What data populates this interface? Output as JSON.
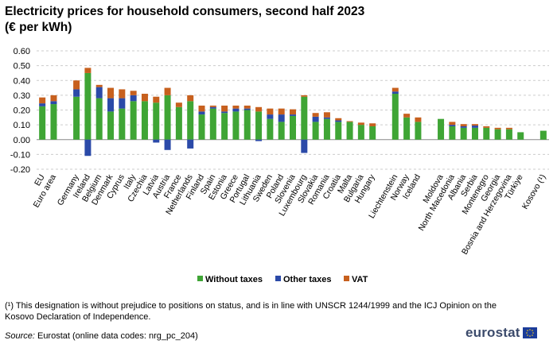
{
  "title": {
    "line1": "Electricity prices for household consumers, second half 2023",
    "line2": "(€ per kWh)"
  },
  "colors": {
    "without_taxes": "#3fa535",
    "other_taxes": "#2b4aa8",
    "vat": "#c7601e",
    "grid": "#cccccc"
  },
  "chart_data": {
    "type": "bar",
    "stacked": true,
    "ylim": [
      -0.2,
      0.6
    ],
    "yticks": [
      "0.60",
      "0.50",
      "0.40",
      "0.30",
      "0.20",
      "0.10",
      "0.00",
      "-0.10",
      "-0.20"
    ],
    "ytick_values": [
      0.6,
      0.5,
      0.4,
      0.3,
      0.2,
      0.1,
      0.0,
      -0.1,
      -0.2
    ],
    "grid": "horizontal dashed",
    "legend_position": "bottom",
    "categories": [
      "EU",
      "Euro area",
      "",
      "Germany",
      "Ireland",
      "Belgium",
      "Denmark",
      "Cyprus",
      "Italy",
      "Czechia",
      "Latvia",
      "Austria",
      "France",
      "Netherlands",
      "Finland",
      "Spain",
      "Estonia",
      "Greece",
      "Portugal",
      "Lithuania",
      "Sweden",
      "Poland",
      "Slovenia",
      "Luxembourg",
      "Slovakia",
      "Romania",
      "Croatia",
      "Malta",
      "Bulgaria",
      "Hungary",
      "",
      "Liechtenstein",
      "Norway",
      "Iceland",
      "",
      "Moldova",
      "North Macedonia",
      "Albania",
      "Serbia",
      "Montenegro",
      "Georgia",
      "Bosnia and Herzegovina",
      "Türkiye",
      "",
      "Kosovo (¹)"
    ],
    "series": [
      {
        "name": "Without taxes",
        "values": [
          0.225,
          0.24,
          null,
          0.29,
          0.45,
          0.28,
          0.19,
          0.21,
          0.26,
          0.26,
          0.25,
          0.3,
          0.22,
          0.26,
          0.17,
          0.21,
          0.18,
          0.19,
          0.2,
          0.19,
          0.14,
          0.12,
          0.16,
          0.29,
          0.12,
          0.14,
          0.12,
          0.12,
          0.1,
          0.09,
          null,
          0.31,
          0.15,
          0.12,
          null,
          0.14,
          0.09,
          0.08,
          0.08,
          0.08,
          0.07,
          0.07,
          0.05,
          null,
          0.06
        ]
      },
      {
        "name": "Other taxes",
        "values": [
          0.02,
          0.02,
          null,
          0.05,
          -0.11,
          0.075,
          0.09,
          0.07,
          0.04,
          0.0,
          -0.02,
          -0.07,
          0.0,
          -0.06,
          0.02,
          0.01,
          0.01,
          0.02,
          0.01,
          -0.01,
          0.03,
          0.05,
          0.01,
          -0.09,
          0.035,
          0.01,
          0.01,
          0.0,
          0.0,
          0.0,
          null,
          0.015,
          0.0,
          0.0,
          null,
          0.0,
          0.01,
          0.01,
          0.015,
          0.0,
          0.0,
          0.0,
          0.0,
          null,
          0.0
        ]
      },
      {
        "name": "VAT",
        "values": [
          0.04,
          0.04,
          null,
          0.06,
          0.035,
          0.015,
          0.07,
          0.06,
          0.03,
          0.05,
          0.04,
          0.05,
          0.03,
          0.04,
          0.04,
          0.01,
          0.04,
          0.02,
          0.02,
          0.03,
          0.04,
          0.04,
          0.035,
          0.01,
          0.025,
          0.035,
          0.015,
          0.005,
          0.015,
          0.02,
          null,
          0.025,
          0.025,
          0.03,
          null,
          0.0,
          0.02,
          0.015,
          0.01,
          0.01,
          0.01,
          0.01,
          0.0,
          null,
          0.0
        ]
      }
    ]
  },
  "legend": [
    {
      "label": "Without taxes",
      "color_key": "without_taxes"
    },
    {
      "label": "Other taxes",
      "color_key": "other_taxes"
    },
    {
      "label": "VAT",
      "color_key": "vat"
    }
  ],
  "footnote": "(¹) This designation is without prejudice to positions on status, and is in line with UNSCR 1244/1999 and the ICJ Opinion on the Kosovo Declaration of Independence.",
  "source": {
    "label": "Source:",
    "text": " Eurostat (online data codes: nrg_pc_204)"
  },
  "logo": {
    "text": "eurostat",
    "icon": "eu-flag-icon"
  }
}
